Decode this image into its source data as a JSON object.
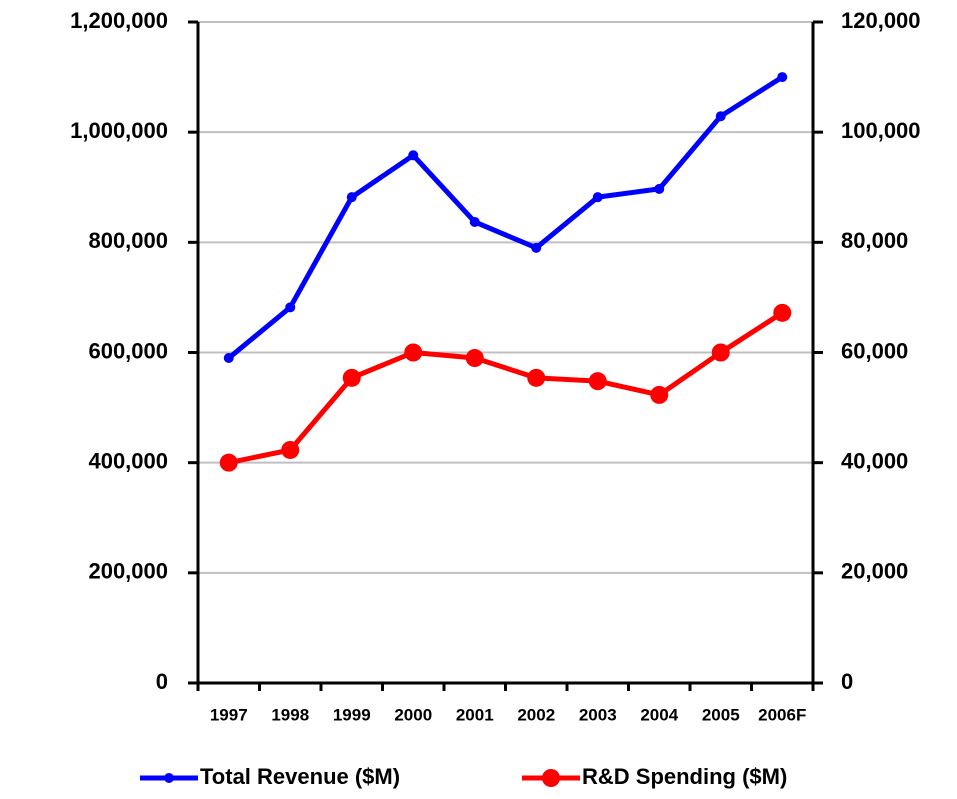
{
  "chart_data": {
    "type": "line",
    "categories": [
      "1997",
      "1998",
      "1999",
      "2000",
      "2001",
      "2002",
      "2003",
      "2004",
      "2005",
      "2006F"
    ],
    "series": [
      {
        "name": "Total Revenue ($M)",
        "color": "#0000ff",
        "values": [
          590000,
          682000,
          882000,
          958000,
          837000,
          790000,
          882000,
          897000,
          1029000,
          1100000
        ]
      },
      {
        "name": "R&D Spending ($M)",
        "color": "#ff0000",
        "axis": "y2",
        "values": [
          40000,
          42300,
          55400,
          60000,
          59000,
          55400,
          54800,
          52300,
          60000,
          67200
        ]
      }
    ],
    "ylim": [
      0,
      1200000
    ],
    "yticks": [
      0,
      {
        "value": 200000,
        "label": "200,000"
      },
      {
        "value": 400000,
        "label": "400,000"
      },
      {
        "value": 600000,
        "label": "600,000"
      },
      {
        "value": 800000,
        "label": "800,000"
      },
      {
        "value": 1000000,
        "label": "1,000,000"
      },
      {
        "value": 1200000,
        "label": "1,200,000"
      }
    ],
    "y2lim": [
      0,
      120000
    ],
    "y2ticks": [
      0,
      {
        "value": 20000,
        "label": "20,000"
      },
      {
        "value": 40000,
        "label": "40,000"
      },
      {
        "value": 60000,
        "label": "60,000"
      },
      {
        "value": 80000,
        "label": "80,000"
      },
      {
        "value": 100000,
        "label": "100,000"
      },
      {
        "value": 120000,
        "label": "120,000"
      }
    ],
    "grid": true,
    "legend": "bottom"
  }
}
